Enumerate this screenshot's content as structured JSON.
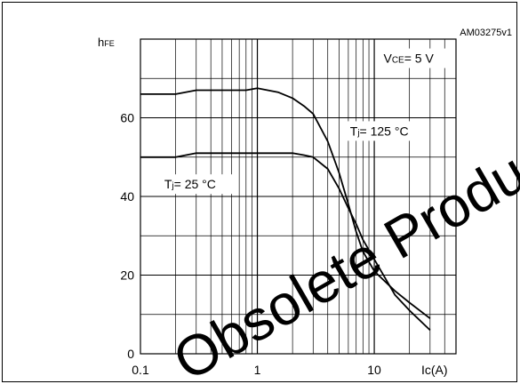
{
  "figure_id": "AM03275v1",
  "watermark": "Obsolete Product(s) -",
  "chart_data": {
    "type": "line",
    "ylabel_main": "h",
    "ylabel_sub": "FE",
    "xlabel": "Ic(A)",
    "x_scale": "log",
    "xlim": [
      0.1,
      50
    ],
    "ylim": [
      0,
      80
    ],
    "x_ticks": [
      0.1,
      1,
      10
    ],
    "x_tick_labels": [
      "0.1",
      "1",
      "10"
    ],
    "y_ticks": [
      0,
      20,
      40,
      60
    ],
    "y_tick_labels": [
      "0",
      "20",
      "40",
      "60"
    ],
    "grid": true,
    "annotations": [
      {
        "main": "V",
        "sub": "CE",
        "rest": "= 5 V",
        "x": 12,
        "y": 74
      },
      {
        "main": "T",
        "sub": "j",
        "rest": "= 125 °C",
        "x": 6.2,
        "y": 55.5
      },
      {
        "main": "T",
        "sub": "j",
        "rest": "= 25 °C",
        "x": 0.16,
        "y": 42
      }
    ],
    "series": [
      {
        "label": "Tj = 125 °C",
        "x": [
          0.1,
          0.2,
          0.3,
          0.5,
          0.8,
          1.0,
          1.5,
          2.0,
          2.5,
          3.0,
          4.0,
          5.0,
          6.0,
          7.0,
          8.0,
          10,
          15,
          20,
          30
        ],
        "y": [
          66,
          66,
          67,
          67,
          67,
          67.5,
          66.5,
          65,
          63,
          61,
          54,
          46,
          38,
          31,
          26,
          21,
          16,
          13,
          9
        ]
      },
      {
        "label": "Tj = 25 °C",
        "x": [
          0.1,
          0.2,
          0.3,
          0.5,
          0.8,
          1.0,
          2.0,
          2.5,
          3.0,
          4.0,
          5.0,
          6.0,
          7.0,
          8.0,
          10,
          15,
          20,
          30
        ],
        "y": [
          50,
          50,
          51,
          51,
          51,
          51,
          51,
          50.5,
          50,
          47,
          42,
          37,
          33,
          29,
          24,
          15,
          11,
          6
        ]
      }
    ]
  }
}
